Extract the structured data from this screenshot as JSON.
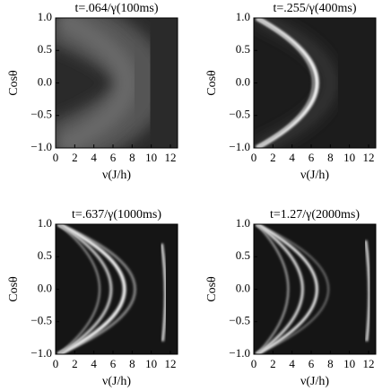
{
  "chart_data": [
    {
      "type": "density",
      "title": "t=.064/γ(100ms)",
      "xlabel": "ν(J/h)",
      "ylabel": "Cosθ",
      "xlim": [
        0,
        12.75
      ],
      "ylim": [
        -1,
        1
      ],
      "xticks": [
        0,
        2,
        4,
        6,
        8,
        10,
        12
      ],
      "yticks": [
        {
          "value": -1,
          "label": "−1.0"
        },
        {
          "value": -0.5,
          "label": "−0.5"
        },
        {
          "value": 0,
          "label": "0.0"
        },
        {
          "value": 0.5,
          "label": "0.5"
        },
        {
          "value": 1,
          "label": "1.0"
        }
      ]
    },
    {
      "type": "density",
      "title": "t=.255/γ(400ms)",
      "xlabel": "ν(J/h)",
      "ylabel": "Cosθ",
      "xlim": [
        0,
        12.75
      ],
      "ylim": [
        -1,
        1
      ],
      "xticks": [
        0,
        2,
        4,
        6,
        8,
        10,
        12
      ],
      "yticks": [
        {
          "value": -1,
          "label": "−1.0"
        },
        {
          "value": -0.5,
          "label": "−0.5"
        },
        {
          "value": 0,
          "label": "0.0"
        },
        {
          "value": 0.5,
          "label": "0.5"
        },
        {
          "value": 1,
          "label": "1.0"
        }
      ]
    },
    {
      "type": "density",
      "title": "t=.637/γ(1000ms)",
      "xlabel": "ν(J/h)",
      "ylabel": "Cosθ",
      "xlim": [
        0,
        12.75
      ],
      "ylim": [
        -1,
        1
      ],
      "xticks": [
        0,
        2,
        4,
        6,
        8,
        10,
        12
      ],
      "yticks": [
        {
          "value": -1,
          "label": "−1.0"
        },
        {
          "value": -0.5,
          "label": "−0.5"
        },
        {
          "value": 0,
          "label": "0.0"
        },
        {
          "value": 0.5,
          "label": "0.5"
        },
        {
          "value": 1,
          "label": "1.0"
        }
      ]
    },
    {
      "type": "density",
      "title": "t=1.27/γ(2000ms)",
      "xlabel": "ν(J/h)",
      "ylabel": "Cosθ",
      "xlim": [
        0,
        12.75
      ],
      "ylim": [
        -1,
        1
      ],
      "xticks": [
        0,
        2,
        4,
        6,
        8,
        10,
        12
      ],
      "yticks": [
        {
          "value": -1,
          "label": "−1.0"
        },
        {
          "value": -0.5,
          "label": "−0.5"
        },
        {
          "value": 0,
          "label": "0.0"
        },
        {
          "value": 0.5,
          "label": "0.5"
        },
        {
          "value": 1,
          "label": "1.0"
        }
      ]
    }
  ]
}
